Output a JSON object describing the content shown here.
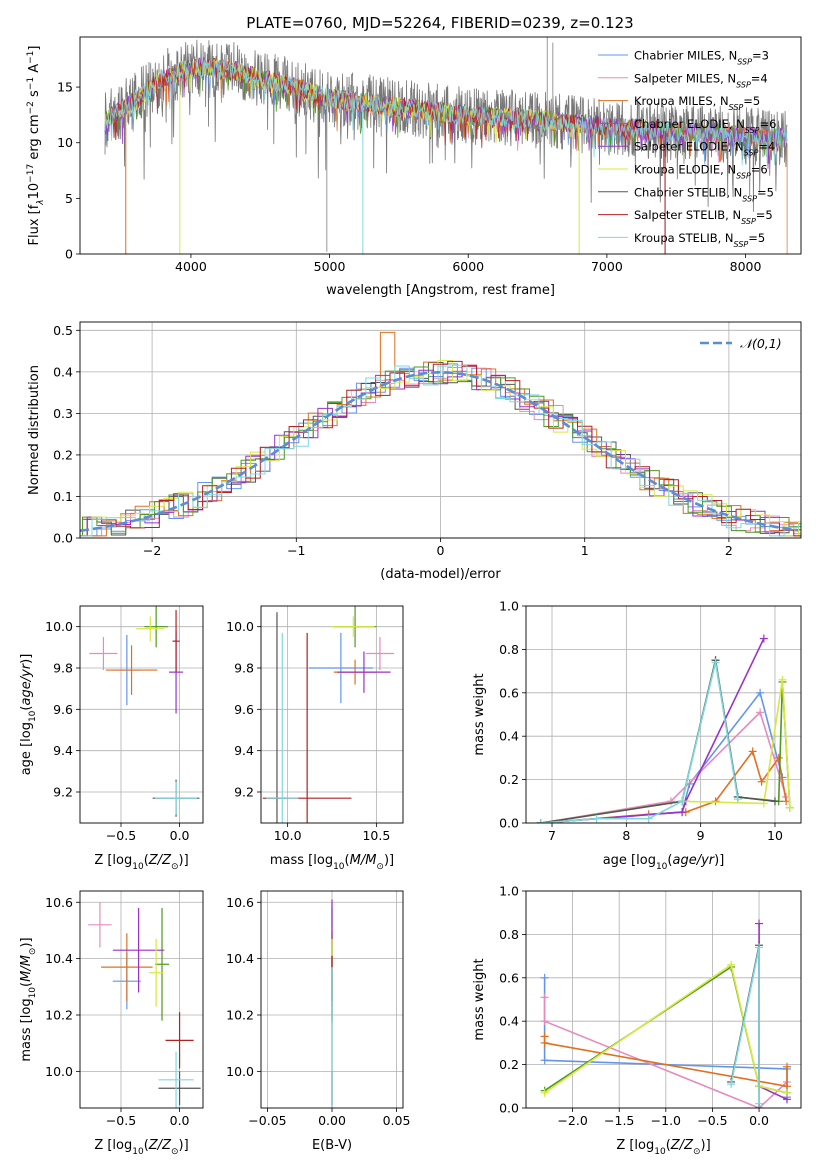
{
  "figure_title": "PLATE=0760, MJD=52264, FIBERID=0239, z=0.123",
  "series_names": [
    "Chabrier MILES, N_SSP=3",
    "Salpeter MILES, N_SSP=4",
    "Kroupa MILES, N_SSP=5",
    "Chabrier ELODIE, N_SSP=6",
    "Salpeter ELODIE, N_SSP=4",
    "Kroupa ELODIE, N_SSP=6",
    "Chabrier STELIB, N_SSP=5",
    "Salpeter STELIB, N_SSP=5",
    "Kroupa STELIB, N_SSP=5"
  ],
  "series_colors": [
    "#6495ED",
    "#E58BBE",
    "#E07020",
    "#4D9922",
    "#9932CC",
    "#D8E840",
    "#555555",
    "#B22222",
    "#7ED8E0"
  ],
  "chart_data": [
    {
      "id": "spectrum",
      "type": "line",
      "title": "PLATE=0760, MJD=52264, FIBERID=0239, z=0.123",
      "xlabel": "wavelength [Angstrom, rest frame]",
      "ylabel_parts": {
        "pre": "Flux [f",
        "sub": "λ",
        "mid": "10",
        "sup1": "−17",
        "post": " erg cm",
        "sup2": "−2",
        "post2": " s",
        "sup3": "−1",
        "post3": " A",
        "sup4": "−1",
        "end": "]"
      },
      "xlim": [
        3200,
        8400
      ],
      "ylim": [
        0,
        19.5
      ],
      "xticks": [
        4000,
        5000,
        6000,
        7000,
        8000
      ],
      "yticks": [
        0,
        5,
        10,
        15
      ],
      "legend_loc": "upper right",
      "grid": false,
      "legend": [
        {
          "pre": "Chabrier MILES, N",
          "sub": "SSP",
          "post": "=3"
        },
        {
          "pre": "Salpeter MILES, N",
          "sub": "SSP",
          "post": "=4"
        },
        {
          "pre": "Kroupa MILES, N",
          "sub": "SSP",
          "post": "=5"
        },
        {
          "pre": "Chabrier ELODIE, N",
          "sub": "SSP",
          "post": "=6"
        },
        {
          "pre": "Salpeter ELODIE, N",
          "sub": "SSP",
          "post": "=4"
        },
        {
          "pre": "Kroupa ELODIE, N",
          "sub": "SSP",
          "post": "=6"
        },
        {
          "pre": "Chabrier STELIB, N",
          "sub": "SSP",
          "post": "=5"
        },
        {
          "pre": "Salpeter STELIB, N",
          "sub": "SSP",
          "post": "=5"
        },
        {
          "pre": "Kroupa STELIB, N",
          "sub": "SSP",
          "post": "=5"
        }
      ],
      "continuum": [
        [
          3380,
          12.0
        ],
        [
          3600,
          13.8
        ],
        [
          3800,
          15.8
        ],
        [
          3950,
          16.5
        ],
        [
          4100,
          16.8
        ],
        [
          4300,
          16.5
        ],
        [
          4500,
          15.8
        ],
        [
          4700,
          15.2
        ],
        [
          5000,
          14.0
        ],
        [
          5500,
          13.2
        ],
        [
          6000,
          12.4
        ],
        [
          6500,
          12.1
        ],
        [
          7000,
          11.4
        ],
        [
          7500,
          11.0
        ],
        [
          8000,
          10.6
        ],
        [
          8300,
          10.4
        ]
      ],
      "drops": [
        [
          3530,
          0
        ],
        [
          3920,
          0
        ],
        [
          5240,
          0
        ],
        [
          6800,
          0
        ],
        [
          7420,
          0
        ]
      ],
      "spikes": [
        [
          4980,
          0.2
        ],
        [
          6570,
          19.5
        ],
        [
          6610,
          19.0
        ]
      ]
    },
    {
      "id": "residuals",
      "type": "histogram",
      "xlabel": "(data-model)/error",
      "ylabel": "Normed distribution",
      "xlim": [
        -2.5,
        2.5
      ],
      "ylim": [
        0,
        0.52
      ],
      "xticks": [
        -2,
        -1,
        0,
        1,
        2
      ],
      "yticks": [
        0.0,
        0.1,
        0.2,
        0.3,
        0.4,
        0.5
      ],
      "grid": true,
      "legend": [
        "𝒩(0,1)"
      ],
      "legend_loc": "upper right",
      "normal": {
        "mu": 0,
        "sigma": 1
      },
      "bin_width": 0.1,
      "peak_bins": [
        [
          -0.35,
          0.495
        ],
        [
          0.05,
          0.44
        ],
        [
          0.45,
          0.43
        ]
      ]
    },
    {
      "id": "age_vs_Z",
      "type": "scatter",
      "xlabel": "Z [log10(Z/Z⊙)]",
      "ylabel": "age [log10(age/yr)]",
      "xlim": [
        -0.85,
        0.2
      ],
      "ylim": [
        9.05,
        10.1
      ],
      "xticks": [
        -0.5,
        0.0
      ],
      "yticks": [
        9.2,
        9.4,
        9.6,
        9.8,
        10.0
      ],
      "grid": true,
      "points": [
        {
          "x": -0.45,
          "y": 9.79,
          "xe": 0.12,
          "ye": 0.17,
          "c": 0
        },
        {
          "x": -0.65,
          "y": 9.87,
          "xe": 0.12,
          "ye": 0.08,
          "c": 1
        },
        {
          "x": -0.41,
          "y": 9.79,
          "xe": 0.22,
          "ye": 0.12,
          "c": 2
        },
        {
          "x": -0.2,
          "y": 10.0,
          "xe": 0.1,
          "ye": 0.1,
          "c": 3
        },
        {
          "x": -0.03,
          "y": 9.78,
          "xe": 0.06,
          "ye": 0.2,
          "c": 4
        },
        {
          "x": -0.25,
          "y": 9.99,
          "xe": 0.12,
          "ye": 0.06,
          "c": 5
        },
        {
          "x": -0.03,
          "y": 9.17,
          "xe": 0.2,
          "ye": 0.09,
          "c": 6
        },
        {
          "x": -0.03,
          "y": 9.93,
          "xe": 0.03,
          "ye": 0.15,
          "c": 7
        },
        {
          "x": -0.03,
          "y": 9.17,
          "xe": 0.18,
          "ye": 0.08,
          "c": 8
        }
      ]
    },
    {
      "id": "age_vs_mass",
      "type": "scatter",
      "xlabel": "mass [log10(M/M⊙)]",
      "ylabel": "",
      "xlim": [
        9.85,
        10.65
      ],
      "ylim": [
        9.05,
        10.1
      ],
      "xticks": [
        10.0,
        10.5
      ],
      "yticks": [
        9.2,
        9.4,
        9.6,
        9.8,
        10.0
      ],
      "grid": true,
      "points": [
        {
          "x": 10.3,
          "y": 9.8,
          "xe": 0.18,
          "ye": 0.17,
          "c": 0
        },
        {
          "x": 10.52,
          "y": 9.87,
          "xe": 0.08,
          "ye": 0.08,
          "c": 1
        },
        {
          "x": 10.38,
          "y": 9.78,
          "xe": 0.12,
          "ye": 0.06,
          "c": 2
        },
        {
          "x": 10.38,
          "y": 10.0,
          "xe": 0.12,
          "ye": 0.1,
          "c": 3
        },
        {
          "x": 10.43,
          "y": 9.78,
          "xe": 0.15,
          "ye": 0.1,
          "c": 4
        },
        {
          "x": 10.37,
          "y": 10.0,
          "xe": 0.12,
          "ye": 0.05,
          "c": 5
        },
        {
          "x": 9.94,
          "y": 9.17,
          "xe": 0.05,
          "ye": 0.9,
          "c": 6
        },
        {
          "x": 10.11,
          "y": 9.17,
          "xe": 0.25,
          "ye": 0.8,
          "c": 7
        },
        {
          "x": 9.97,
          "y": 9.17,
          "xe": 0.09,
          "ye": 0.8,
          "c": 8
        }
      ]
    },
    {
      "id": "weight_vs_age",
      "type": "line",
      "xlabel": "age [log10(age/yr)]",
      "ylabel": "mass weight",
      "xlim": [
        6.65,
        10.35
      ],
      "ylim": [
        0,
        1.0
      ],
      "xticks": [
        7,
        8,
        9,
        10
      ],
      "yticks": [
        0.0,
        0.2,
        0.4,
        0.6,
        0.8,
        1.0
      ],
      "grid": true,
      "series": [
        {
          "c": 0,
          "pts": [
            [
              6.85,
              0.0
            ],
            [
              8.75,
              0.05
            ],
            [
              8.85,
              0.18
            ],
            [
              9.8,
              0.6
            ],
            [
              10.1,
              0.21
            ]
          ]
        },
        {
          "c": 1,
          "pts": [
            [
              6.85,
              0.0
            ],
            [
              8.6,
              0.1
            ],
            [
              9.8,
              0.51
            ],
            [
              10.15,
              0.12
            ]
          ]
        },
        {
          "c": 2,
          "pts": [
            [
              6.85,
              0.0
            ],
            [
              8.3,
              0.04
            ],
            [
              8.8,
              0.05
            ],
            [
              9.2,
              0.1
            ],
            [
              9.7,
              0.33
            ],
            [
              9.82,
              0.19
            ],
            [
              10.05,
              0.3
            ],
            [
              10.15,
              0.1
            ]
          ]
        },
        {
          "c": 3,
          "pts": [
            [
              6.85,
              0.0
            ],
            [
              8.75,
              0.1
            ],
            [
              9.2,
              0.75
            ],
            [
              9.5,
              0.12
            ],
            [
              10.05,
              0.1
            ],
            [
              10.1,
              0.65
            ],
            [
              10.2,
              0.07
            ]
          ]
        },
        {
          "c": 4,
          "pts": [
            [
              6.85,
              0.0
            ],
            [
              8.75,
              0.05
            ],
            [
              8.8,
              0.1
            ],
            [
              9.85,
              0.85
            ]
          ]
        },
        {
          "c": 5,
          "pts": [
            [
              6.85,
              0.0
            ],
            [
              8.75,
              0.1
            ],
            [
              9.85,
              0.09
            ],
            [
              10.1,
              0.66
            ],
            [
              10.2,
              0.07
            ]
          ]
        },
        {
          "c": 6,
          "pts": [
            [
              6.85,
              0.0
            ],
            [
              8.75,
              0.1
            ],
            [
              9.2,
              0.75
            ],
            [
              9.5,
              0.12
            ],
            [
              10.0,
              0.1
            ]
          ]
        },
        {
          "c": 8,
          "pts": [
            [
              6.85,
              0.0
            ],
            [
              7.6,
              0.02
            ],
            [
              8.3,
              0.02
            ],
            [
              8.75,
              0.1
            ],
            [
              9.2,
              0.74
            ],
            [
              9.5,
              0.11
            ]
          ]
        }
      ]
    },
    {
      "id": "mass_vs_Z",
      "type": "scatter",
      "xlabel": "Z [log10(Z/Z⊙)]",
      "ylabel": "mass [log10(M/M⊙)]",
      "xlim": [
        -0.85,
        0.2
      ],
      "ylim": [
        9.87,
        10.64
      ],
      "xticks": [
        -0.5,
        0.0
      ],
      "yticks": [
        10.0,
        10.2,
        10.4,
        10.6
      ],
      "grid": true,
      "points": [
        {
          "x": -0.45,
          "y": 10.32,
          "xe": 0.12,
          "ye": 0.1,
          "c": 0
        },
        {
          "x": -0.68,
          "y": 10.52,
          "xe": 0.1,
          "ye": 0.08,
          "c": 1
        },
        {
          "x": -0.45,
          "y": 10.37,
          "xe": 0.22,
          "ye": 0.12,
          "c": 2
        },
        {
          "x": -0.15,
          "y": 10.38,
          "xe": 0.06,
          "ye": 0.2,
          "c": 3
        },
        {
          "x": -0.35,
          "y": 10.43,
          "xe": 0.22,
          "ye": 0.15,
          "c": 4
        },
        {
          "x": -0.2,
          "y": 10.35,
          "xe": 0.06,
          "ye": 0.12,
          "c": 5
        },
        {
          "x": 0.0,
          "y": 9.94,
          "xe": 0.18,
          "ye": 0.06,
          "c": 6
        },
        {
          "x": 0.0,
          "y": 10.11,
          "xe": 0.12,
          "ye": 0.1,
          "c": 7
        },
        {
          "x": -0.03,
          "y": 9.97,
          "xe": 0.15,
          "ye": 0.1,
          "c": 8
        }
      ]
    },
    {
      "id": "mass_vs_ebv",
      "type": "scatter",
      "xlabel": "E(B-V)",
      "ylabel": "",
      "xlim": [
        -0.055,
        0.055
      ],
      "ylim": [
        9.87,
        10.64
      ],
      "xticks": [
        -0.05,
        0.0,
        0.05
      ],
      "yticks": [
        10.0,
        10.2,
        10.4,
        10.6
      ],
      "grid": true,
      "points": [
        {
          "x": 0.0,
          "y": 10.32,
          "xe": 0.0,
          "ye": 0.15,
          "c": 0
        },
        {
          "x": 0.0,
          "y": 10.52,
          "xe": 0.0,
          "ye": 0.08,
          "c": 1
        },
        {
          "x": 0.0,
          "y": 10.37,
          "xe": 0.0,
          "ye": 0.12,
          "c": 2
        },
        {
          "x": 0.0,
          "y": 10.38,
          "xe": 0.0,
          "ye": 0.2,
          "c": 3
        },
        {
          "x": 0.0,
          "y": 10.43,
          "xe": 0.0,
          "ye": 0.18,
          "c": 4
        },
        {
          "x": 0.0,
          "y": 10.35,
          "xe": 0.0,
          "ye": 0.12,
          "c": 5
        },
        {
          "x": 0.0,
          "y": 9.94,
          "xe": 0.0,
          "ye": 0.06,
          "c": 6
        },
        {
          "x": 0.0,
          "y": 10.11,
          "xe": 0.0,
          "ye": 0.3,
          "c": 7
        },
        {
          "x": 0.0,
          "y": 9.97,
          "xe": 0.0,
          "ye": 0.4,
          "c": 8
        }
      ]
    },
    {
      "id": "weight_vs_Z",
      "type": "line",
      "xlabel": "Z [log10(Z/Z⊙)]",
      "ylabel": "mass weight",
      "xlim": [
        -2.5,
        0.45
      ],
      "ylim": [
        0,
        1.0
      ],
      "xticks": [
        -2.0,
        -1.5,
        -1.0,
        -0.5,
        0.0
      ],
      "yticks": [
        0.0,
        0.2,
        0.4,
        0.6,
        0.8,
        1.0
      ],
      "grid": true,
      "series": [
        {
          "c": 0,
          "pts": [
            [
              -2.3,
              0.6
            ],
            [
              -2.3,
              0.22
            ],
            [
              0.3,
              0.18
            ],
            [
              0.3,
              0.05
            ]
          ]
        },
        {
          "c": 1,
          "pts": [
            [
              -2.3,
              0.51
            ],
            [
              -2.3,
              0.4
            ],
            [
              0.0,
              0.0
            ],
            [
              0.3,
              0.12
            ]
          ]
        },
        {
          "c": 2,
          "pts": [
            [
              -2.3,
              0.33
            ],
            [
              -2.3,
              0.3
            ],
            [
              0.3,
              0.1
            ],
            [
              0.3,
              0.19
            ]
          ]
        },
        {
          "c": 3,
          "pts": [
            [
              -2.3,
              0.08
            ],
            [
              -0.3,
              0.65
            ],
            [
              0.0,
              0.1
            ],
            [
              0.3,
              0.07
            ]
          ]
        },
        {
          "c": 4,
          "pts": [
            [
              0.0,
              0.85
            ],
            [
              0.0,
              0.1
            ],
            [
              0.3,
              0.04
            ]
          ]
        },
        {
          "c": 5,
          "pts": [
            [
              -2.3,
              0.07
            ],
            [
              -0.3,
              0.66
            ],
            [
              0.0,
              0.1
            ],
            [
              0.3,
              0.07
            ]
          ]
        },
        {
          "c": 6,
          "pts": [
            [
              -0.3,
              0.12
            ],
            [
              0.0,
              0.75
            ],
            [
              0.0,
              0.0
            ]
          ]
        },
        {
          "c": 8,
          "pts": [
            [
              -0.3,
              0.11
            ],
            [
              0.0,
              0.74
            ],
            [
              0.0,
              0.02
            ]
          ]
        }
      ]
    }
  ]
}
